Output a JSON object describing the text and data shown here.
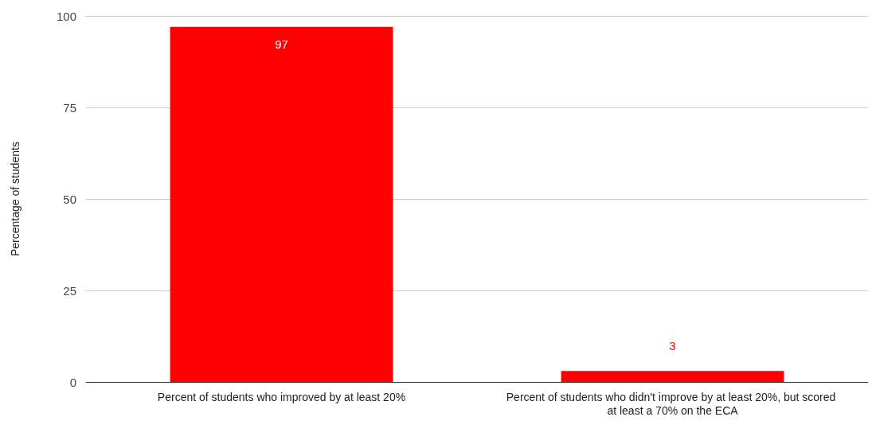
{
  "chart_data": {
    "type": "bar",
    "ylabel": "Percentage of students",
    "categories": [
      "Percent of students who improved by at least 20%",
      "Percent of students who didn't improve by at least 20%, but scored at least a 70% on the ECA"
    ],
    "values": [
      97,
      3
    ],
    "color": "#ff0000",
    "ylim": [
      0,
      100
    ],
    "yticks": [
      0,
      25,
      50,
      75,
      100
    ],
    "grid": "y",
    "data_labels": true
  }
}
